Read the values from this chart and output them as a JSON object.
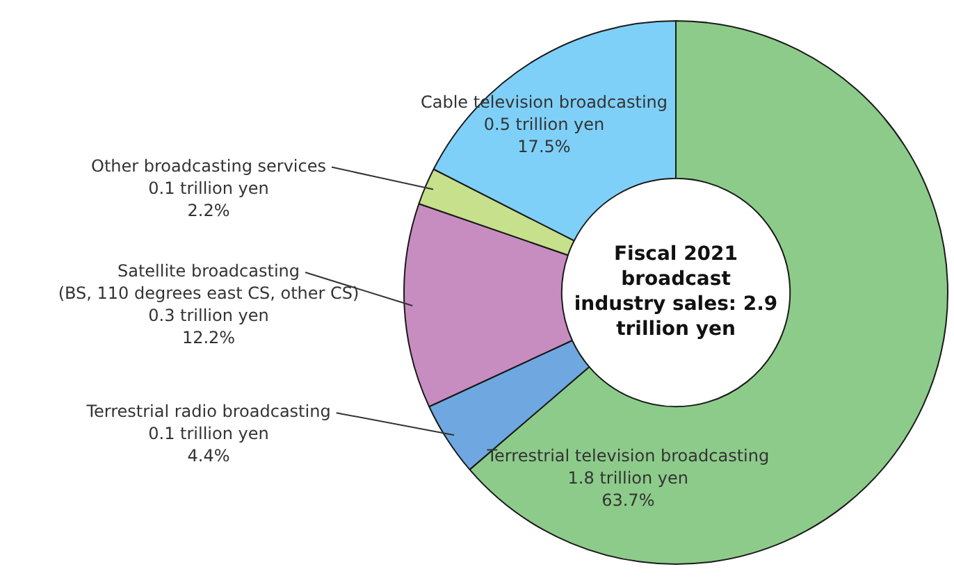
{
  "chart_data": {
    "type": "donut",
    "title": "Fiscal 2021 broadcast industry sales: 2.9 trillion yen",
    "categories": [
      "Terrestrial television broadcasting",
      "Terrestrial radio broadcasting",
      "Satellite broadcasting\n(BS, 110 degrees east CS, other CS)",
      "Other broadcasting services",
      "Cable television broadcasting"
    ],
    "values": [
      63.7,
      4.4,
      12.2,
      2.2,
      17.5
    ],
    "colors": [
      "#8dcb8a",
      "#6fa8e0",
      "#c88dc0",
      "#c6e08c",
      "#7fd0f8"
    ],
    "value_labels": [
      "1.8 trillion yen\n63.7%",
      "0.1 trillion yen\n4.4%",
      "0.3 trillion yen\n12.2%",
      "0.1 trillion yen\n2.2%",
      "0.5 trillion yen\n17.5%"
    ],
    "legend": false
  }
}
